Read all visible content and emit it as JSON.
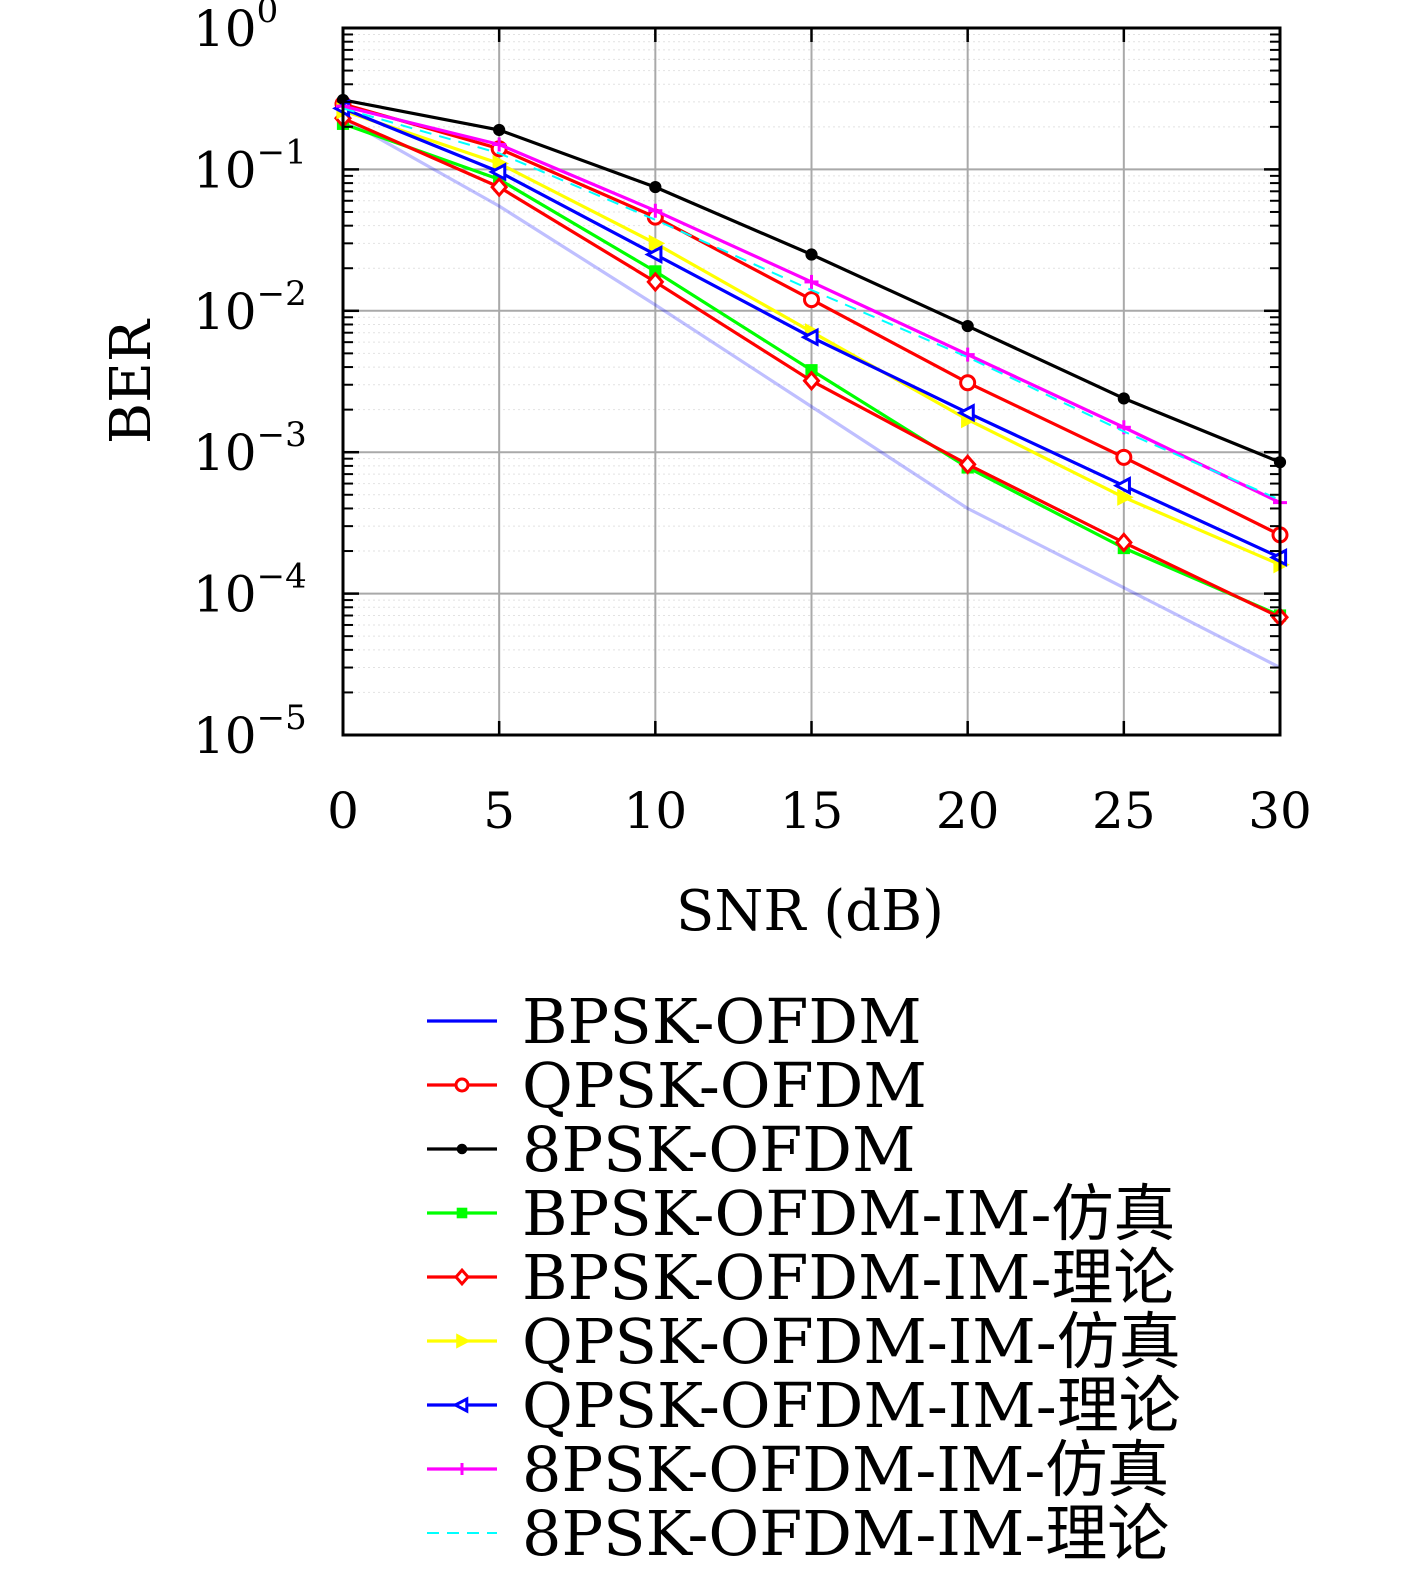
{
  "chart_data": {
    "type": "line",
    "xlabel": "SNR (dB)",
    "ylabel": "BER",
    "x": [
      0,
      5,
      10,
      15,
      20,
      25,
      30
    ],
    "xlim": [
      0,
      30
    ],
    "xticks": [
      "0",
      "5",
      "10",
      "15",
      "20",
      "25",
      "30"
    ],
    "ylim": [
      1e-05,
      1
    ],
    "yscale": "log",
    "yticks": [
      {
        "base": "10",
        "exp": "0"
      },
      {
        "base": "10",
        "exp": "−1"
      },
      {
        "base": "10",
        "exp": "−2"
      },
      {
        "base": "10",
        "exp": "−3"
      },
      {
        "base": "10",
        "exp": "−4"
      },
      {
        "base": "10",
        "exp": "−5"
      }
    ],
    "grid": true,
    "legend_position": "below",
    "series": [
      {
        "name": "BPSK-OFDM",
        "color": "#0000ff",
        "marker": "none",
        "dash": "solid",
        "values": [
          0.23,
          0.055,
          0.011,
          0.0021,
          0.0004,
          0.00011,
          3e-05
        ]
      },
      {
        "name": "QPSK-OFDM",
        "color": "#ff0000",
        "marker": "circle",
        "dash": "solid",
        "values": [
          0.29,
          0.14,
          0.046,
          0.012,
          0.0031,
          0.00092,
          0.00026
        ]
      },
      {
        "name": "8PSK-OFDM",
        "color": "#000000",
        "marker": "dot",
        "dash": "solid",
        "values": [
          0.31,
          0.19,
          0.075,
          0.025,
          0.0078,
          0.0024,
          0.00085
        ]
      },
      {
        "name": "BPSK-OFDM-IM-仿真",
        "color": "#00ff00",
        "marker": "square",
        "dash": "solid",
        "values": [
          0.21,
          0.085,
          0.019,
          0.0038,
          0.00078,
          0.00021,
          7e-05
        ]
      },
      {
        "name": "BPSK-OFDM-IM-理论",
        "color": "#ff0000",
        "marker": "diamond",
        "dash": "solid",
        "values": [
          0.23,
          0.075,
          0.016,
          0.0032,
          0.00082,
          0.00023,
          6.8e-05
        ]
      },
      {
        "name": "QPSK-OFDM-IM-仿真",
        "color": "#ffff00",
        "marker": "triangle-right",
        "dash": "solid",
        "values": [
          0.26,
          0.11,
          0.03,
          0.0071,
          0.0017,
          0.00048,
          0.00016
        ]
      },
      {
        "name": "QPSK-OFDM-IM-理论",
        "color": "#0000ff",
        "marker": "triangle-left",
        "dash": "solid",
        "values": [
          0.27,
          0.096,
          0.025,
          0.0065,
          0.0019,
          0.00058,
          0.00018
        ]
      },
      {
        "name": "8PSK-OFDM-IM-仿真",
        "color": "#ff00ff",
        "marker": "plus",
        "dash": "solid",
        "values": [
          0.28,
          0.15,
          0.051,
          0.016,
          0.0049,
          0.0015,
          0.00044
        ]
      },
      {
        "name": "8PSK-OFDM-IM-理论",
        "color": "#00ffff",
        "marker": "none",
        "dash": "dashed",
        "values": [
          0.27,
          0.13,
          0.044,
          0.014,
          0.0047,
          0.0014,
          0.00046
        ]
      }
    ]
  }
}
